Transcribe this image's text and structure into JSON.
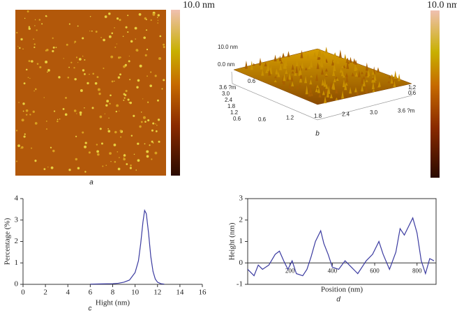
{
  "panels": {
    "a": {
      "label": "a",
      "scale": "10.0 nm"
    },
    "b": {
      "label": "b",
      "scale": "10.0 nm",
      "z_top": "10.0 nm",
      "z_bottom": "0.0 nm",
      "left_axis": [
        "3.6 ?m",
        "3.0",
        "2.4",
        "1.8",
        "1.2",
        "0.6"
      ],
      "front_axis": [
        "0.6",
        "1.2",
        "1.8",
        "2.4",
        "3.0",
        "3.6 ?m"
      ],
      "right_axis": [
        "1.2",
        "0.6"
      ],
      "back_left": "0.6"
    },
    "c": {
      "label": "c"
    },
    "d": {
      "label": "d"
    }
  },
  "chart_data": [
    {
      "type": "line",
      "xlabel": "Hight (nm)",
      "ylabel": "Percentage (%)",
      "color": "#3a3aa0",
      "x": [
        6,
        7,
        8,
        8.5,
        9,
        9.5,
        10,
        10.3,
        10.5,
        10.7,
        10.85,
        11,
        11.2,
        11.4,
        11.6,
        11.8,
        12,
        12.3,
        12.6
      ],
      "values": [
        0.01,
        0.02,
        0.03,
        0.05,
        0.1,
        0.2,
        0.55,
        1.1,
        1.9,
        2.9,
        3.45,
        3.3,
        2.4,
        1.3,
        0.6,
        0.25,
        0.1,
        0.03,
        0.01
      ],
      "xlim": [
        0,
        16
      ],
      "xticks": [
        0,
        2,
        4,
        6,
        8,
        10,
        12,
        14,
        16
      ],
      "ylim": [
        0,
        4
      ],
      "yticks": [
        0,
        1,
        2,
        3,
        4
      ]
    },
    {
      "type": "line",
      "xlabel": "Position (nm)",
      "ylabel": "Height (nm)",
      "color": "#3a3aa0",
      "x": [
        0,
        30,
        50,
        70,
        100,
        130,
        150,
        170,
        190,
        210,
        230,
        260,
        280,
        300,
        320,
        345,
        360,
        380,
        400,
        430,
        460,
        490,
        520,
        560,
        590,
        620,
        640,
        670,
        700,
        720,
        740,
        760,
        780,
        800,
        820,
        840,
        860,
        880
      ],
      "values": [
        -0.3,
        -0.6,
        -0.1,
        -0.3,
        -0.1,
        0.4,
        0.55,
        0.1,
        -0.3,
        0.1,
        -0.5,
        -0.6,
        -0.3,
        0.3,
        1.0,
        1.5,
        0.9,
        0.4,
        -0.2,
        -0.3,
        0.1,
        -0.2,
        -0.5,
        0.1,
        0.4,
        1.0,
        0.4,
        -0.3,
        0.5,
        1.6,
        1.3,
        1.7,
        2.1,
        1.4,
        0.1,
        -0.5,
        0.2,
        0.1
      ],
      "xlim": [
        0,
        890
      ],
      "xticks": [
        200,
        400,
        600,
        800
      ],
      "ylim": [
        -1,
        3
      ],
      "yticks": [
        -1,
        0,
        1,
        2,
        3
      ]
    }
  ]
}
